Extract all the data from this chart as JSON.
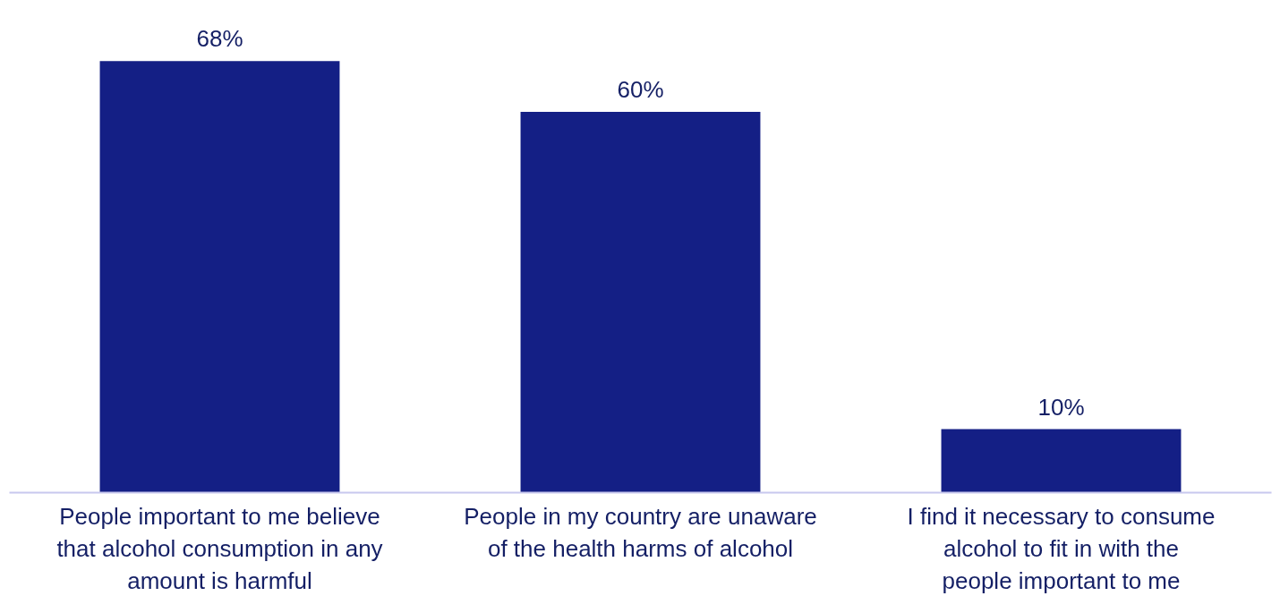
{
  "chart_data": {
    "type": "bar",
    "categories": [
      "People important to me believe that alcohol consumption in any amount is harmful",
      "People in my country are unaware of the health harms of alcohol",
      "I find it necessary to consume alcohol to fit in with the people important to me"
    ],
    "values": [
      68,
      60,
      10
    ],
    "color": "#141f85",
    "data_labels": true,
    "value_labels": [
      "68%",
      "60%",
      "10%"
    ],
    "grid": false
  }
}
